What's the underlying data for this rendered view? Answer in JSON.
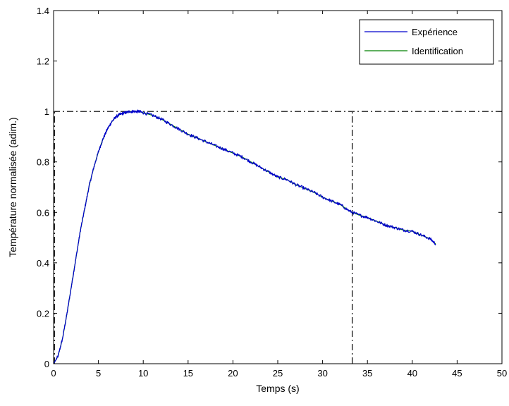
{
  "chart_data": {
    "type": "line",
    "xlabel": "Temps (s)",
    "ylabel": "Température normalisée (adim.)",
    "xlim": [
      0,
      50
    ],
    "ylim": [
      0,
      1.4
    ],
    "xticks": [
      0,
      5,
      10,
      15,
      20,
      25,
      30,
      35,
      40,
      45,
      50
    ],
    "yticks": [
      0,
      0.2,
      0.4,
      0.6,
      0.8,
      1,
      1.2,
      1.4
    ],
    "xtick_labels": [
      "0",
      "5",
      "10",
      "15",
      "20",
      "25",
      "30",
      "35",
      "40",
      "45",
      "50"
    ],
    "ytick_labels": [
      "0",
      "0.2",
      "0.4",
      "0.6",
      "0.8",
      "1",
      "1.2",
      "1.4"
    ],
    "grid": false,
    "legend_position": "top-right",
    "series": [
      {
        "name": "Expérience",
        "color": "#0000cc",
        "noisy": true,
        "x": [
          0,
          0.5,
          1,
          1.5,
          2,
          2.5,
          3,
          3.5,
          4,
          4.5,
          5,
          5.5,
          6,
          6.5,
          7,
          7.5,
          8,
          8.5,
          9,
          9.5,
          10,
          11,
          12,
          13,
          14,
          15,
          16,
          17,
          18,
          19,
          20,
          21,
          22,
          23,
          24,
          25,
          26,
          27,
          28,
          29,
          30,
          31,
          32,
          33,
          34,
          35,
          36,
          37,
          38,
          39,
          40,
          41,
          42,
          42.6
        ],
        "y": [
          0,
          0.03,
          0.1,
          0.2,
          0.31,
          0.42,
          0.53,
          0.62,
          0.71,
          0.78,
          0.84,
          0.89,
          0.93,
          0.96,
          0.98,
          0.99,
          0.995,
          1.0,
          1.0,
          1.0,
          0.995,
          0.985,
          0.97,
          0.95,
          0.93,
          0.91,
          0.895,
          0.88,
          0.865,
          0.85,
          0.835,
          0.82,
          0.8,
          0.78,
          0.76,
          0.74,
          0.73,
          0.71,
          0.695,
          0.68,
          0.66,
          0.645,
          0.63,
          0.605,
          0.59,
          0.58,
          0.565,
          0.55,
          0.54,
          0.53,
          0.525,
          0.51,
          0.495,
          0.475
        ]
      },
      {
        "name": "Identification",
        "color": "#008000",
        "noisy": false,
        "x": [
          0,
          0.5,
          1,
          1.5,
          2,
          2.5,
          3,
          3.5,
          4,
          4.5,
          5,
          5.5,
          6,
          6.5,
          7,
          7.5,
          8,
          8.5,
          9,
          9.5,
          10,
          11,
          12,
          13,
          14,
          15,
          16,
          17,
          18,
          19,
          20,
          21,
          22,
          23,
          24,
          25,
          26,
          27,
          28,
          29,
          30,
          31,
          32,
          33,
          34,
          35,
          36,
          37,
          38,
          39,
          40,
          41,
          42,
          42.6
        ],
        "y": [
          0,
          0.03,
          0.1,
          0.2,
          0.31,
          0.42,
          0.53,
          0.62,
          0.71,
          0.78,
          0.84,
          0.89,
          0.93,
          0.96,
          0.98,
          0.99,
          0.995,
          1.0,
          1.0,
          1.0,
          0.995,
          0.985,
          0.97,
          0.95,
          0.93,
          0.91,
          0.895,
          0.88,
          0.865,
          0.85,
          0.835,
          0.82,
          0.8,
          0.78,
          0.76,
          0.74,
          0.73,
          0.71,
          0.695,
          0.68,
          0.66,
          0.645,
          0.63,
          0.605,
          0.59,
          0.58,
          0.565,
          0.55,
          0.54,
          0.53,
          0.525,
          0.51,
          0.495,
          0.475
        ]
      }
    ],
    "reference_lines": [
      {
        "orientation": "horizontal",
        "value": 1,
        "style": "dash-dot",
        "color": "#000000"
      },
      {
        "orientation": "vertical",
        "value": 33.3,
        "from": 0,
        "to": 1,
        "style": "dash-dot",
        "color": "#000000"
      },
      {
        "orientation": "vertical",
        "value": 0.1,
        "from": 0,
        "to": 1,
        "style": "dash-dot",
        "color": "#000000"
      }
    ]
  }
}
